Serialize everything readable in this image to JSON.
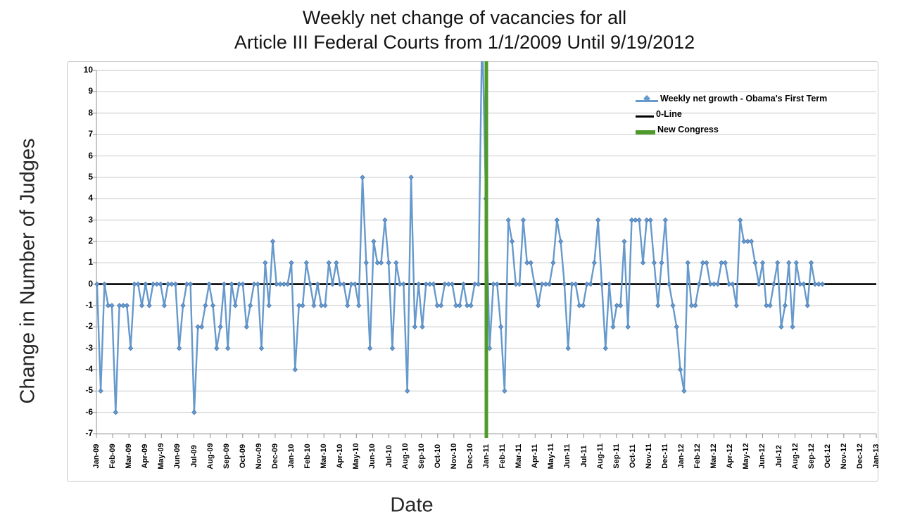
{
  "title": {
    "line1": "Weekly net change of vacancies for all",
    "line2": "Article III Federal Courts from 1/1/2009 Until 9/19/2012"
  },
  "y_axis": {
    "title": "Change in Number of Judges",
    "tick_labels": [
      "10",
      "9",
      "8",
      "7",
      "6",
      "5",
      "4",
      "3",
      "2",
      "1",
      "0",
      "-1",
      "-2",
      "-3",
      "-4",
      "-5",
      "-6",
      "-7"
    ],
    "max": 10,
    "min": -7
  },
  "x_axis": {
    "title": "Date",
    "labels": [
      "Jan-09",
      "Feb-09",
      "Mar-09",
      "Apr-09",
      "May-09",
      "Jun-09",
      "Jul-09",
      "Aug-09",
      "Sep-09",
      "Oct-09",
      "Nov-09",
      "Dec-09",
      "Jan-10",
      "Feb-10",
      "Mar-10",
      "Apr-10",
      "May-10",
      "Jun-10",
      "Jul-10",
      "Aug-10",
      "Sep-10",
      "Oct-10",
      "Nov-10",
      "Dec-10",
      "Jan-11",
      "Feb-11",
      "Mar-11",
      "Apr-11",
      "May-11",
      "Jun-11",
      "Jul-11",
      "Aug-11",
      "Sep-11",
      "Oct-11",
      "Nov-11",
      "Dec-11",
      "Jan-12",
      "Feb-12",
      "Mar-12",
      "Apr-12",
      "May-12",
      "Jun-12",
      "Jul-12",
      "Aug-12",
      "Sep-12",
      "Oct-12",
      "Nov-12",
      "Dec-12",
      "Jan-13"
    ]
  },
  "legend": [
    {
      "label": "Weekly net growth - Obama's First Term",
      "color": "#6699cc",
      "glyph": "line-diamond"
    },
    {
      "label": "0-Line",
      "color": "#000000",
      "glyph": "line"
    },
    {
      "label": "New Congress",
      "color": "#4e9a2a",
      "glyph": "thick-line"
    }
  ],
  "chart_data": {
    "type": "line",
    "title": "Weekly net change of vacancies for all Article III Federal Courts from 1/1/2009 Until 9/19/2012",
    "xlabel": "Date",
    "ylabel": "Change in Number of Judges",
    "ylim": [
      -7,
      10
    ],
    "grid": true,
    "legend_position": "upper right",
    "x_unit": "week",
    "x_start_label": "Jan-09",
    "x_end_label": "Jan-13",
    "zero_line": 0,
    "new_congress_month_index": 24,
    "clip_max": 10,
    "spike_index": 103,
    "series": [
      {
        "name": "Weekly net growth - Obama's First Term",
        "color": "#6699cc",
        "marker": "diamond",
        "values": [
          0,
          -5,
          0,
          -1,
          -1,
          -6,
          -1,
          -1,
          -1,
          -3,
          0,
          0,
          -1,
          0,
          -1,
          0,
          0,
          0,
          -1,
          0,
          0,
          0,
          -3,
          -1,
          0,
          0,
          -6,
          -2,
          -2,
          -1,
          0,
          -1,
          -3,
          -2,
          0,
          -3,
          0,
          -1,
          0,
          0,
          -2,
          -1,
          0,
          0,
          -3,
          1,
          -1,
          2,
          0,
          0,
          0,
          0,
          1,
          -4,
          -1,
          -1,
          1,
          0,
          -1,
          0,
          -1,
          -1,
          1,
          0,
          1,
          0,
          0,
          -1,
          0,
          0,
          -1,
          5,
          1,
          -3,
          2,
          1,
          1,
          3,
          1,
          -3,
          1,
          0,
          0,
          -5,
          5,
          -2,
          0,
          -2,
          0,
          0,
          0,
          -1,
          -1,
          0,
          0,
          0,
          -1,
          -1,
          0,
          -1,
          -1,
          0,
          0,
          12,
          4,
          -3,
          0,
          0,
          -2,
          -5,
          3,
          2,
          0,
          0,
          3,
          1,
          1,
          0,
          -1,
          0,
          0,
          0,
          1,
          3,
          2,
          0,
          -3,
          0,
          0,
          -1,
          -1,
          0,
          0,
          1,
          3,
          0,
          -3,
          0,
          -2,
          -1,
          -1,
          2,
          -2,
          3,
          3,
          3,
          1,
          3,
          3,
          1,
          -1,
          1,
          3,
          0,
          -1,
          -2,
          -4,
          -5,
          1,
          -1,
          -1,
          0,
          1,
          1,
          0,
          0,
          0,
          1,
          1,
          0,
          0,
          -1,
          3,
          2,
          2,
          2,
          1,
          0,
          1,
          -1,
          -1,
          0,
          1,
          -2,
          -1,
          1,
          -2,
          1,
          0,
          0,
          -1,
          1,
          0,
          0,
          0
        ]
      }
    ],
    "colors": {
      "series_line": "#6699cc",
      "marker_edge": "#4a7ab5",
      "zero_line": "#000000",
      "new_congress_line": "#4e9a2a",
      "gridline": "#c7c7c7",
      "axis_line": "#8f8f8f"
    }
  }
}
